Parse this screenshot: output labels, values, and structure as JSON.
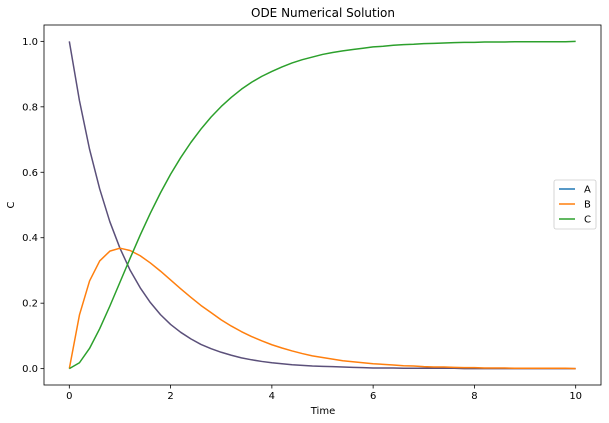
{
  "chart_data": {
    "type": "line",
    "title": "ODE Numerical Solution",
    "xlabel": "Time",
    "ylabel": "C",
    "xlim": [
      -0.5,
      10.5
    ],
    "ylim": [
      -0.05,
      1.05
    ],
    "xticks": [
      0,
      2,
      4,
      6,
      8,
      10
    ],
    "yticks": [
      0.0,
      0.2,
      0.4,
      0.6,
      0.8,
      1.0
    ],
    "xtick_labels": [
      "0",
      "2",
      "4",
      "6",
      "8",
      "10"
    ],
    "ytick_labels": [
      "0.0",
      "0.2",
      "0.4",
      "0.6",
      "0.8",
      "1.0"
    ],
    "grid": false,
    "legend_position": "center-right",
    "x": [
      0,
      0.2,
      0.4,
      0.6,
      0.8,
      1.0,
      1.2,
      1.4,
      1.6,
      1.8,
      2.0,
      2.2,
      2.4,
      2.6,
      2.8,
      3.0,
      3.2,
      3.4,
      3.6,
      3.8,
      4.0,
      4.2,
      4.4,
      4.6,
      4.8,
      5.0,
      5.2,
      5.4,
      5.6,
      5.8,
      6.0,
      6.2,
      6.4,
      6.6,
      6.8,
      7.0,
      7.2,
      7.4,
      7.6,
      7.8,
      8.0,
      8.2,
      8.4,
      8.6,
      8.8,
      9.0,
      9.2,
      9.4,
      9.6,
      9.8,
      10.0
    ],
    "series": [
      {
        "name": "A",
        "color": "#1f77b4",
        "values": [
          1.0,
          0.819,
          0.67,
          0.549,
          0.449,
          0.368,
          0.301,
          0.247,
          0.202,
          0.165,
          0.135,
          0.111,
          0.091,
          0.074,
          0.061,
          0.05,
          0.041,
          0.033,
          0.027,
          0.022,
          0.018,
          0.015,
          0.012,
          0.01,
          0.008,
          0.007,
          0.006,
          0.005,
          0.004,
          0.003,
          0.002,
          0.002,
          0.002,
          0.001,
          0.001,
          0.001,
          0.001,
          0.001,
          0.001,
          0.0,
          0.0,
          0.0,
          0.0,
          0.0,
          0.0,
          0.0,
          0.0,
          0.0,
          0.0,
          0.0,
          0.0
        ]
      },
      {
        "name": "B",
        "color": "#ff7f0e",
        "values": [
          0.0,
          0.164,
          0.268,
          0.329,
          0.359,
          0.368,
          0.361,
          0.345,
          0.323,
          0.298,
          0.271,
          0.244,
          0.218,
          0.193,
          0.171,
          0.149,
          0.13,
          0.113,
          0.098,
          0.085,
          0.073,
          0.063,
          0.054,
          0.046,
          0.039,
          0.034,
          0.029,
          0.024,
          0.021,
          0.018,
          0.015,
          0.013,
          0.011,
          0.009,
          0.008,
          0.006,
          0.005,
          0.005,
          0.004,
          0.003,
          0.003,
          0.002,
          0.002,
          0.002,
          0.001,
          0.001,
          0.001,
          0.001,
          0.001,
          0.001,
          0.0
        ]
      },
      {
        "name": "C",
        "color": "#2ca02c",
        "values": [
          0.0,
          0.018,
          0.062,
          0.122,
          0.191,
          0.264,
          0.337,
          0.408,
          0.475,
          0.537,
          0.594,
          0.645,
          0.691,
          0.732,
          0.769,
          0.801,
          0.829,
          0.854,
          0.875,
          0.893,
          0.908,
          0.922,
          0.934,
          0.944,
          0.952,
          0.96,
          0.966,
          0.971,
          0.975,
          0.979,
          0.983,
          0.985,
          0.988,
          0.99,
          0.991,
          0.993,
          0.994,
          0.995,
          0.996,
          0.997,
          0.997,
          0.998,
          0.998,
          0.998,
          0.999,
          0.999,
          0.999,
          0.999,
          0.999,
          0.999,
          1.0
        ]
      }
    ]
  },
  "series_overlay_color": "#5b507a"
}
